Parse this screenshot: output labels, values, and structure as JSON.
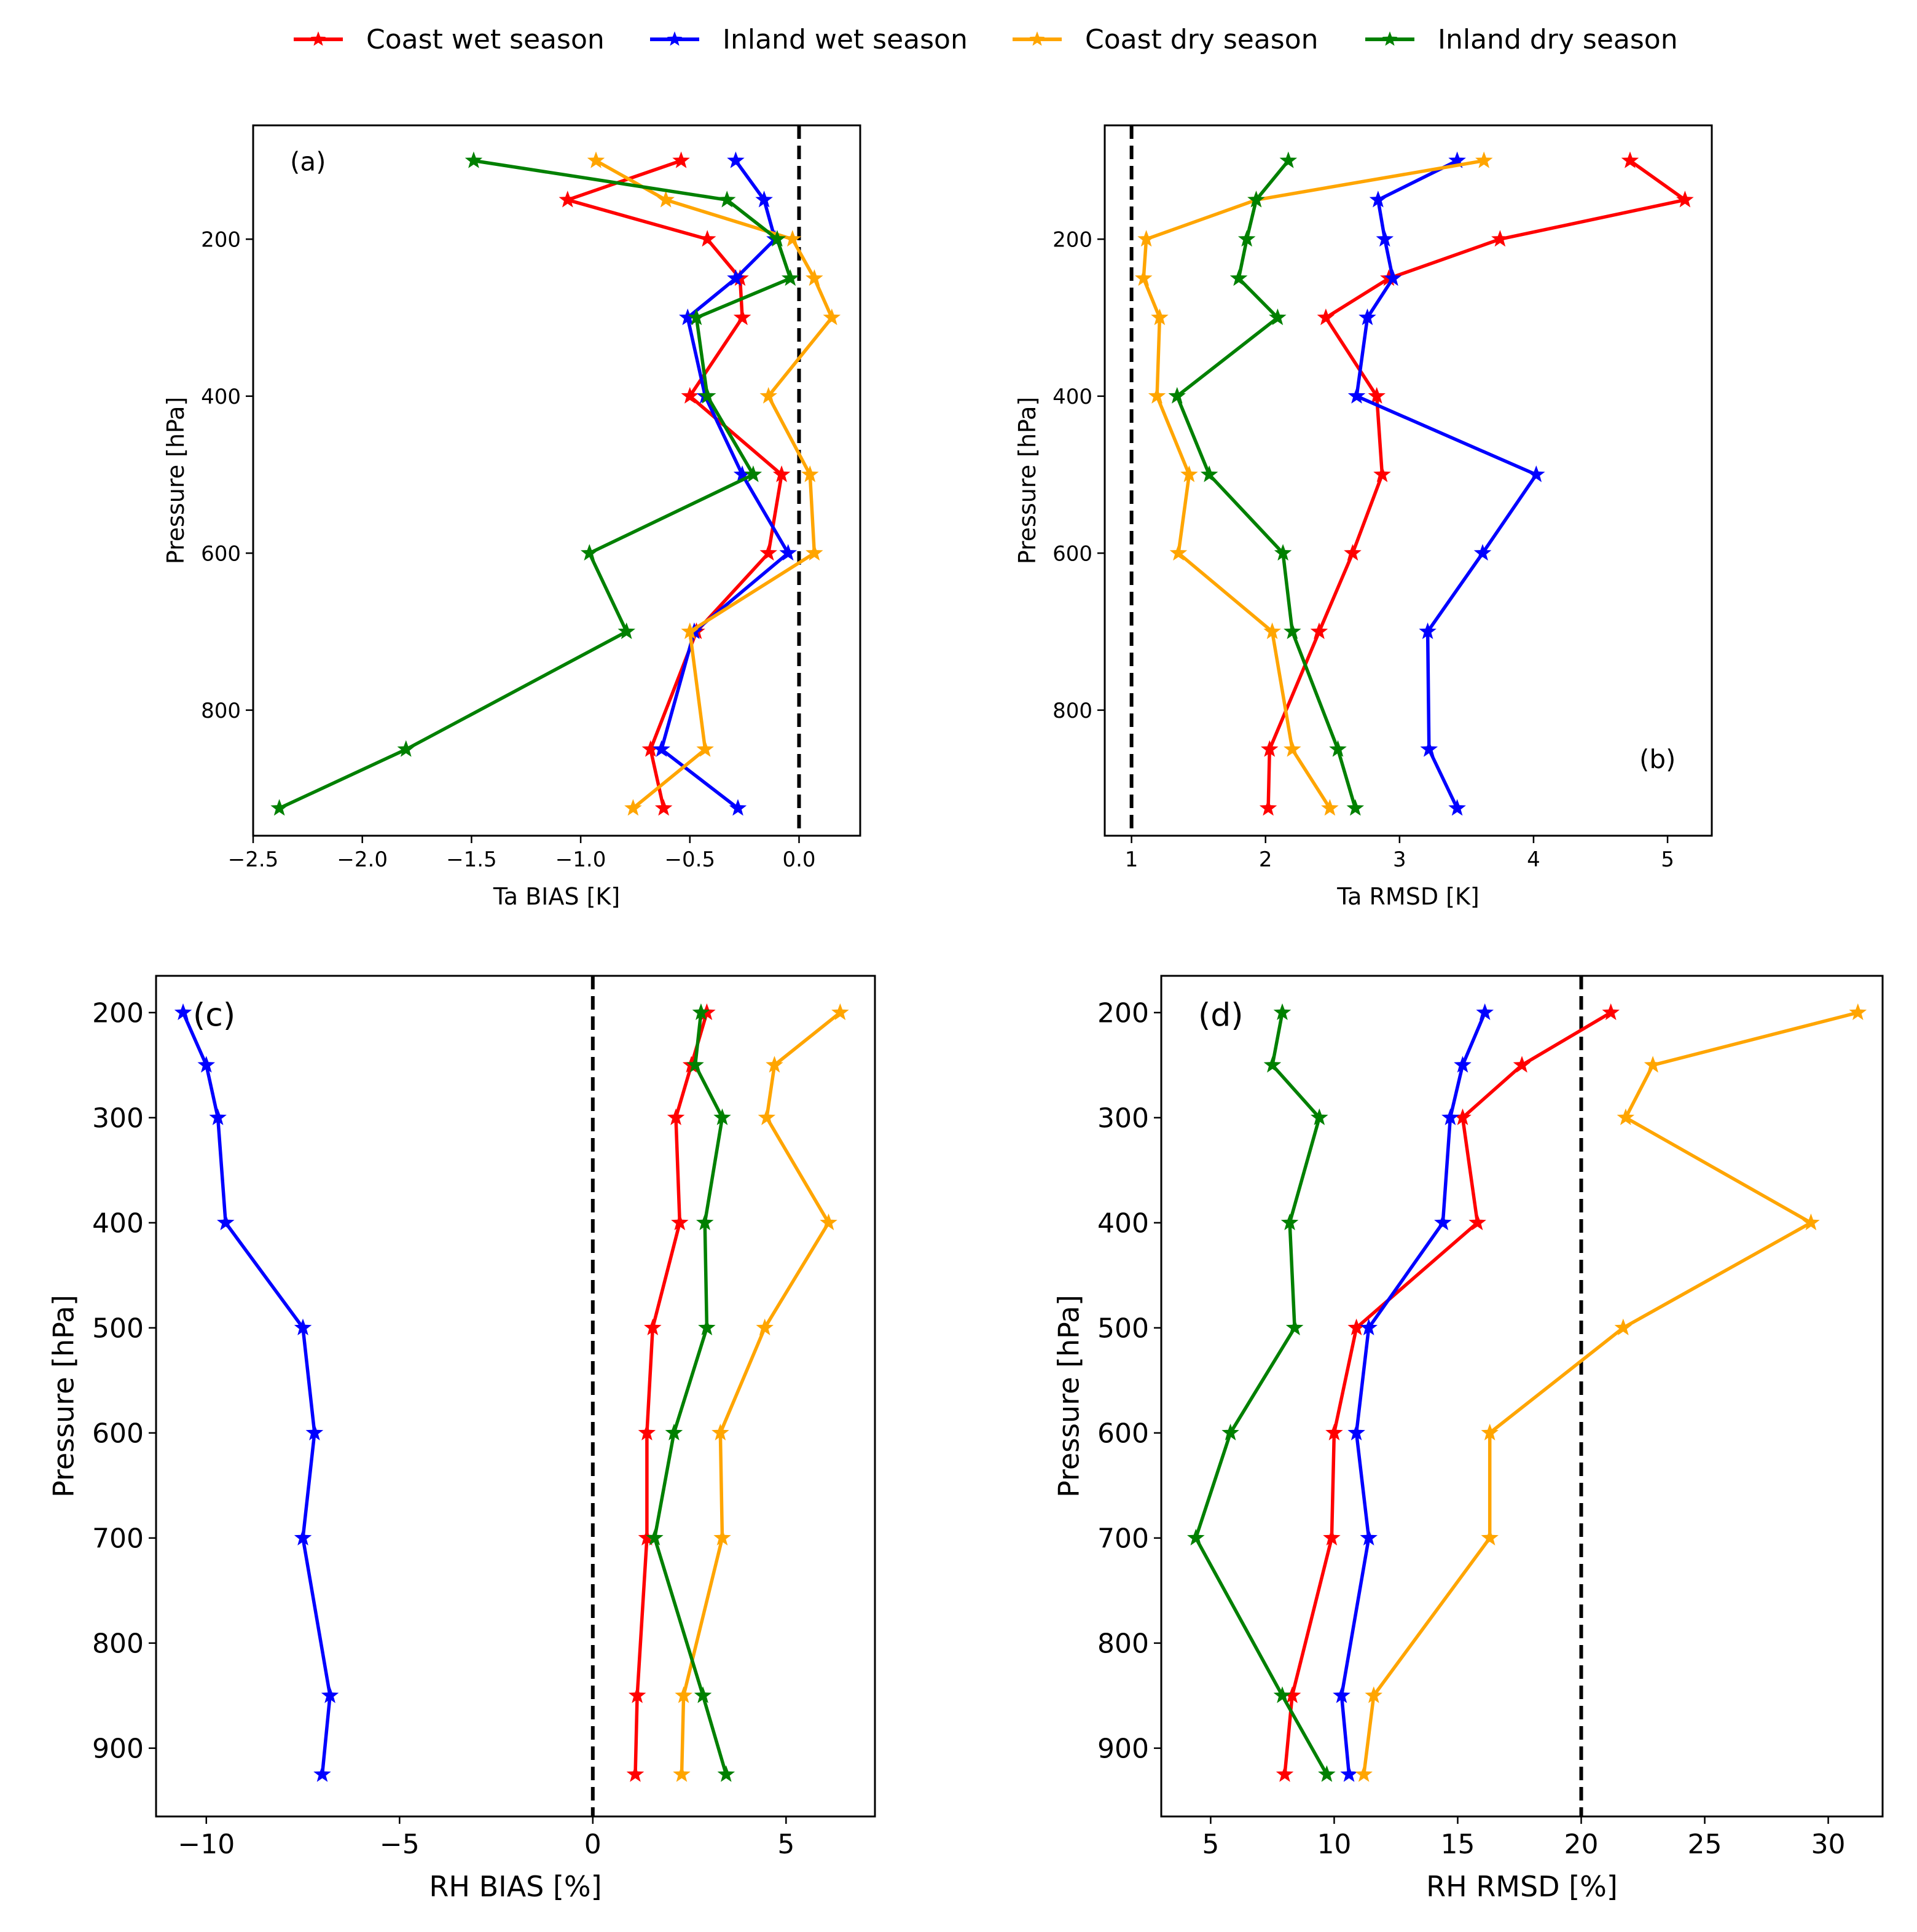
{
  "legend": [
    {
      "label": "Coast wet season",
      "color": "#ff0000"
    },
    {
      "label": "Inland wet season",
      "color": "#0000ff"
    },
    {
      "label": "Coast dry season",
      "color": "#ffa500"
    },
    {
      "label": "Inland dry season",
      "color": "#008000"
    }
  ],
  "chart_data": [
    {
      "type": "line",
      "panel_label": "(a)",
      "xlabel": "Ta BIAS [K]",
      "ylabel": "Pressure [hPa]",
      "xlim": [
        -2.5,
        0.28
      ],
      "ylim": [
        960,
        55
      ],
      "xticks": [
        -2.5,
        -2.0,
        -1.5,
        -1.0,
        -0.5,
        0.0
      ],
      "xtick_labels": [
        "−2.5",
        "−2.0",
        "−1.5",
        "−1.0",
        "−0.5",
        "0.0"
      ],
      "yticks": [
        200,
        400,
        600,
        800
      ],
      "ytick_labels": [
        "200",
        "400",
        "600",
        "800"
      ],
      "reference_line": 0,
      "pressure": [
        100,
        150,
        200,
        250,
        300,
        400,
        500,
        600,
        700,
        850,
        925
      ],
      "series": [
        {
          "name": "Coast wet season",
          "color": "#ff0000",
          "values": [
            -0.54,
            -1.06,
            -0.42,
            -0.27,
            -0.26,
            -0.5,
            -0.08,
            -0.14,
            -0.47,
            -0.68,
            -0.62
          ]
        },
        {
          "name": "Inland wet season",
          "color": "#0000ff",
          "values": [
            -0.29,
            -0.16,
            -0.11,
            -0.29,
            -0.51,
            -0.43,
            -0.26,
            -0.05,
            -0.48,
            -0.63,
            -0.28
          ]
        },
        {
          "name": "Coast dry season",
          "color": "#ffa500",
          "values": [
            -0.93,
            -0.61,
            -0.03,
            0.07,
            0.15,
            -0.14,
            0.05,
            0.07,
            -0.5,
            -0.43,
            -0.76
          ]
        },
        {
          "name": "Inland dry season",
          "color": "#008000",
          "values": [
            -1.49,
            -0.33,
            -0.1,
            -0.04,
            -0.47,
            -0.42,
            -0.21,
            -0.96,
            -0.79,
            -1.8,
            -2.38
          ]
        }
      ]
    },
    {
      "type": "line",
      "panel_label": "(b)",
      "xlabel": "Ta RMSD [K]",
      "ylabel": "Pressure [hPa]",
      "xlim": [
        0.8,
        5.33
      ],
      "ylim": [
        960,
        55
      ],
      "xticks": [
        1,
        2,
        3,
        4,
        5
      ],
      "xtick_labels": [
        "1",
        "2",
        "3",
        "4",
        "5"
      ],
      "yticks": [
        200,
        400,
        600,
        800
      ],
      "ytick_labels": [
        "200",
        "400",
        "600",
        "800"
      ],
      "reference_line": 1,
      "pressure": [
        100,
        150,
        200,
        250,
        300,
        400,
        500,
        600,
        700,
        850,
        925
      ],
      "series": [
        {
          "name": "Coast wet season",
          "color": "#ff0000",
          "values": [
            4.72,
            5.13,
            3.75,
            2.92,
            2.45,
            2.83,
            2.87,
            2.65,
            2.4,
            2.03,
            2.02
          ]
        },
        {
          "name": "Inland wet season",
          "color": "#0000ff",
          "values": [
            3.43,
            2.84,
            2.89,
            2.95,
            2.76,
            2.68,
            4.02,
            3.62,
            3.21,
            3.22,
            3.43
          ]
        },
        {
          "name": "Coast dry season",
          "color": "#ffa500",
          "values": [
            3.63,
            1.93,
            1.11,
            1.09,
            1.21,
            1.19,
            1.43,
            1.35,
            2.05,
            2.2,
            2.48
          ]
        },
        {
          "name": "Inland dry season",
          "color": "#008000",
          "values": [
            2.17,
            1.93,
            1.86,
            1.8,
            2.09,
            1.34,
            1.58,
            2.13,
            2.2,
            2.54,
            2.67
          ]
        }
      ]
    },
    {
      "type": "line",
      "panel_label": "(c)",
      "xlabel": "RH BIAS [%]",
      "ylabel": "Pressure [hPa]",
      "xlim": [
        -11.3,
        7.3
      ],
      "ylim": [
        965,
        165
      ],
      "xticks": [
        -10,
        -5,
        0,
        5
      ],
      "xtick_labels": [
        "−10",
        "−5",
        "0",
        "5"
      ],
      "yticks": [
        200,
        300,
        400,
        500,
        600,
        700,
        800,
        900
      ],
      "ytick_labels": [
        "200",
        "300",
        "400",
        "500",
        "600",
        "700",
        "800",
        "900"
      ],
      "reference_line": 0,
      "pressure": [
        200,
        250,
        300,
        400,
        500,
        600,
        700,
        850,
        925
      ],
      "series": [
        {
          "name": "Coast wet season",
          "color": "#ff0000",
          "values": [
            2.95,
            2.55,
            2.15,
            2.25,
            1.55,
            1.4,
            1.4,
            1.15,
            1.1
          ]
        },
        {
          "name": "Inland wet season",
          "color": "#0000ff",
          "values": [
            -10.6,
            -10.0,
            -9.7,
            -9.5,
            -7.5,
            -7.2,
            -7.5,
            -6.8,
            -7.0
          ]
        },
        {
          "name": "Coast dry season",
          "color": "#ffa500",
          "values": [
            6.4,
            4.7,
            4.5,
            6.1,
            4.45,
            3.3,
            3.35,
            2.35,
            2.3
          ]
        },
        {
          "name": "Inland dry season",
          "color": "#008000",
          "values": [
            2.8,
            2.65,
            3.35,
            2.9,
            2.95,
            2.1,
            1.6,
            2.85,
            3.45
          ]
        }
      ]
    },
    {
      "type": "line",
      "panel_label": "(d)",
      "xlabel": "RH RMSD [%]",
      "ylabel": "Pressure [hPa]",
      "xlim": [
        3.0,
        32.2
      ],
      "ylim": [
        965,
        165
      ],
      "xticks": [
        5,
        10,
        15,
        20,
        25,
        30
      ],
      "xtick_labels": [
        "5",
        "10",
        "15",
        "20",
        "25",
        "30"
      ],
      "yticks": [
        200,
        300,
        400,
        500,
        600,
        700,
        800,
        900
      ],
      "ytick_labels": [
        "200",
        "300",
        "400",
        "500",
        "600",
        "700",
        "800",
        "900"
      ],
      "reference_line": 20,
      "pressure": [
        200,
        250,
        300,
        400,
        500,
        600,
        700,
        850,
        925
      ],
      "series": [
        {
          "name": "Coast wet season",
          "color": "#ff0000",
          "values": [
            21.2,
            17.6,
            15.2,
            15.8,
            10.9,
            10.0,
            9.9,
            8.3,
            8.0
          ]
        },
        {
          "name": "Inland wet season",
          "color": "#0000ff",
          "values": [
            16.1,
            15.2,
            14.7,
            14.4,
            11.4,
            10.9,
            11.4,
            10.3,
            10.6
          ]
        },
        {
          "name": "Coast dry season",
          "color": "#ffa500",
          "values": [
            31.2,
            22.9,
            21.8,
            29.3,
            21.7,
            16.3,
            16.3,
            11.6,
            11.2
          ]
        },
        {
          "name": "Inland dry season",
          "color": "#008000",
          "values": [
            7.9,
            7.5,
            9.4,
            8.2,
            8.4,
            5.8,
            4.4,
            7.9,
            9.7
          ]
        }
      ]
    }
  ]
}
